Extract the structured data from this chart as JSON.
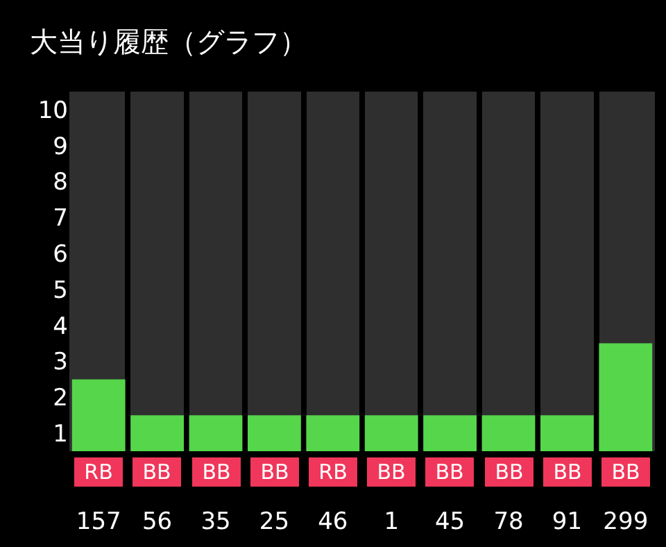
{
  "chart_data": {
    "type": "bar",
    "title": "大当り履歴（グラフ）",
    "categories": [
      "157",
      "56",
      "35",
      "25",
      "46",
      "1",
      "45",
      "78",
      "91",
      "299"
    ],
    "values": [
      2,
      1,
      1,
      1,
      1,
      1,
      1,
      1,
      1,
      3
    ],
    "color": "#55d64b",
    "base": [
      0.5,
      0.5,
      0.5,
      0.5,
      0.5,
      0.5,
      0.5,
      0.5,
      0.5,
      0.5
    ],
    "ylim": [
      0.5,
      10.5
    ],
    "yticks": [
      1,
      2,
      3,
      4,
      5,
      6,
      7,
      8,
      9,
      10
    ],
    "grid": "x",
    "annotations": [
      "RB",
      "BB",
      "BB",
      "BB",
      "RB",
      "BB",
      "BB",
      "BB",
      "BB",
      "BB"
    ]
  }
}
